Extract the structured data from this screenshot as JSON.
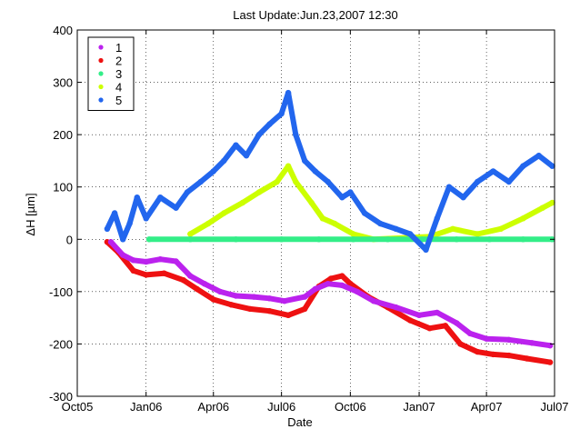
{
  "chart_data": {
    "type": "scatter",
    "title": "Last Update:Jun.23,2007 12:30",
    "xlabel": "Date",
    "ylabel": "ΔH [µm]",
    "ylim": [
      -300,
      400
    ],
    "yticks": [
      -300,
      -200,
      -100,
      0,
      100,
      200,
      300,
      400
    ],
    "xlim": [
      "2005-10-01",
      "2007-07-01"
    ],
    "xticks": [
      {
        "date": "2005-10-01",
        "label": "Oct05"
      },
      {
        "date": "2006-01-01",
        "label": "Jan06"
      },
      {
        "date": "2006-04-01",
        "label": "Apr06"
      },
      {
        "date": "2006-07-01",
        "label": "Jul06"
      },
      {
        "date": "2006-10-01",
        "label": "Oct06"
      },
      {
        "date": "2007-01-01",
        "label": "Jan07"
      },
      {
        "date": "2007-04-01",
        "label": "Apr07"
      },
      {
        "date": "2007-07-01",
        "label": "Jul07"
      }
    ],
    "grid": true,
    "legend_position": "top-left",
    "series": [
      {
        "name": "1",
        "color": "#bb22ee",
        "points": [
          [
            "2005-11-15",
            -5
          ],
          [
            "2005-12-01",
            -30
          ],
          [
            "2005-12-15",
            -40
          ],
          [
            "2006-01-01",
            -43
          ],
          [
            "2006-01-20",
            -38
          ],
          [
            "2006-02-10",
            -42
          ],
          [
            "2006-03-01",
            -70
          ],
          [
            "2006-03-20",
            -85
          ],
          [
            "2006-04-10",
            -100
          ],
          [
            "2006-05-01",
            -108
          ],
          [
            "2006-05-25",
            -110
          ],
          [
            "2006-06-15",
            -113
          ],
          [
            "2006-07-05",
            -118
          ],
          [
            "2006-08-01",
            -110
          ],
          [
            "2006-08-15",
            -95
          ],
          [
            "2006-09-01",
            -85
          ],
          [
            "2006-09-20",
            -88
          ],
          [
            "2006-10-10",
            -100
          ],
          [
            "2006-11-01",
            -118
          ],
          [
            "2006-12-01",
            -130
          ],
          [
            "2007-01-01",
            -145
          ],
          [
            "2007-01-25",
            -140
          ],
          [
            "2007-02-20",
            -160
          ],
          [
            "2007-03-10",
            -180
          ],
          [
            "2007-04-01",
            -190
          ],
          [
            "2007-05-01",
            -192
          ],
          [
            "2007-06-01",
            -198
          ],
          [
            "2007-06-25",
            -203
          ]
        ]
      },
      {
        "name": "2",
        "color": "#ee1111",
        "points": [
          [
            "2005-11-10",
            -5
          ],
          [
            "2005-11-25",
            -25
          ],
          [
            "2005-12-15",
            -60
          ],
          [
            "2006-01-01",
            -68
          ],
          [
            "2006-01-25",
            -65
          ],
          [
            "2006-02-20",
            -78
          ],
          [
            "2006-03-10",
            -95
          ],
          [
            "2006-04-01",
            -115
          ],
          [
            "2006-04-25",
            -125
          ],
          [
            "2006-05-20",
            -133
          ],
          [
            "2006-06-15",
            -137
          ],
          [
            "2006-07-10",
            -145
          ],
          [
            "2006-08-01",
            -133
          ],
          [
            "2006-08-20",
            -90
          ],
          [
            "2006-09-05",
            -75
          ],
          [
            "2006-09-20",
            -70
          ],
          [
            "2006-10-01",
            -85
          ],
          [
            "2006-10-25",
            -110
          ],
          [
            "2006-11-20",
            -130
          ],
          [
            "2006-12-20",
            -155
          ],
          [
            "2007-01-15",
            -170
          ],
          [
            "2007-02-05",
            -165
          ],
          [
            "2007-02-25",
            -200
          ],
          [
            "2007-03-20",
            -215
          ],
          [
            "2007-04-10",
            -220
          ],
          [
            "2007-05-01",
            -222
          ],
          [
            "2007-05-25",
            -228
          ],
          [
            "2007-06-25",
            -235
          ]
        ]
      },
      {
        "name": "3",
        "color": "#33ee88",
        "points": [
          [
            "2006-01-05",
            0
          ],
          [
            "2006-03-01",
            0
          ],
          [
            "2006-05-01",
            0
          ],
          [
            "2006-07-01",
            0
          ],
          [
            "2006-08-20",
            0
          ],
          [
            "2006-10-05",
            0
          ],
          [
            "2006-11-20",
            0
          ],
          [
            "2007-01-05",
            0
          ],
          [
            "2007-02-20",
            0
          ],
          [
            "2007-04-05",
            0
          ],
          [
            "2007-05-20",
            0
          ],
          [
            "2007-06-28",
            0
          ]
        ]
      },
      {
        "name": "4",
        "color": "#ccff00",
        "points": [
          [
            "2006-03-01",
            10
          ],
          [
            "2006-03-25",
            30
          ],
          [
            "2006-04-15",
            50
          ],
          [
            "2006-05-10",
            70
          ],
          [
            "2006-06-01",
            90
          ],
          [
            "2006-06-25",
            110
          ],
          [
            "2006-07-10",
            140
          ],
          [
            "2006-07-20",
            110
          ],
          [
            "2006-08-10",
            70
          ],
          [
            "2006-08-25",
            40
          ],
          [
            "2006-09-10",
            30
          ],
          [
            "2006-10-05",
            10
          ],
          [
            "2006-11-01",
            0
          ],
          [
            "2007-01-15",
            5
          ],
          [
            "2007-02-15",
            20
          ],
          [
            "2007-03-20",
            10
          ],
          [
            "2007-04-20",
            20
          ],
          [
            "2007-05-20",
            40
          ],
          [
            "2007-06-15",
            60
          ],
          [
            "2007-06-28",
            70
          ]
        ]
      },
      {
        "name": "5",
        "color": "#2266ee",
        "points": [
          [
            "2005-11-10",
            20
          ],
          [
            "2005-11-20",
            50
          ],
          [
            "2005-12-01",
            0
          ],
          [
            "2005-12-10",
            30
          ],
          [
            "2005-12-20",
            80
          ],
          [
            "2006-01-01",
            40
          ],
          [
            "2006-01-20",
            80
          ],
          [
            "2006-02-10",
            60
          ],
          [
            "2006-02-25",
            90
          ],
          [
            "2006-03-15",
            110
          ],
          [
            "2006-04-01",
            130
          ],
          [
            "2006-04-15",
            150
          ],
          [
            "2006-05-01",
            180
          ],
          [
            "2006-05-15",
            160
          ],
          [
            "2006-06-01",
            200
          ],
          [
            "2006-06-15",
            220
          ],
          [
            "2006-07-01",
            240
          ],
          [
            "2006-07-10",
            280
          ],
          [
            "2006-07-20",
            200
          ],
          [
            "2006-08-01",
            150
          ],
          [
            "2006-08-15",
            130
          ],
          [
            "2006-09-01",
            110
          ],
          [
            "2006-09-20",
            80
          ],
          [
            "2006-10-01",
            90
          ],
          [
            "2006-10-20",
            50
          ],
          [
            "2006-11-10",
            30
          ],
          [
            "2006-12-01",
            20
          ],
          [
            "2006-12-20",
            10
          ],
          [
            "2007-01-10",
            -20
          ],
          [
            "2007-01-25",
            40
          ],
          [
            "2007-02-10",
            100
          ],
          [
            "2007-03-01",
            80
          ],
          [
            "2007-03-20",
            110
          ],
          [
            "2007-04-10",
            130
          ],
          [
            "2007-05-01",
            110
          ],
          [
            "2007-05-20",
            140
          ],
          [
            "2007-06-10",
            160
          ],
          [
            "2007-06-28",
            140
          ]
        ]
      }
    ]
  }
}
